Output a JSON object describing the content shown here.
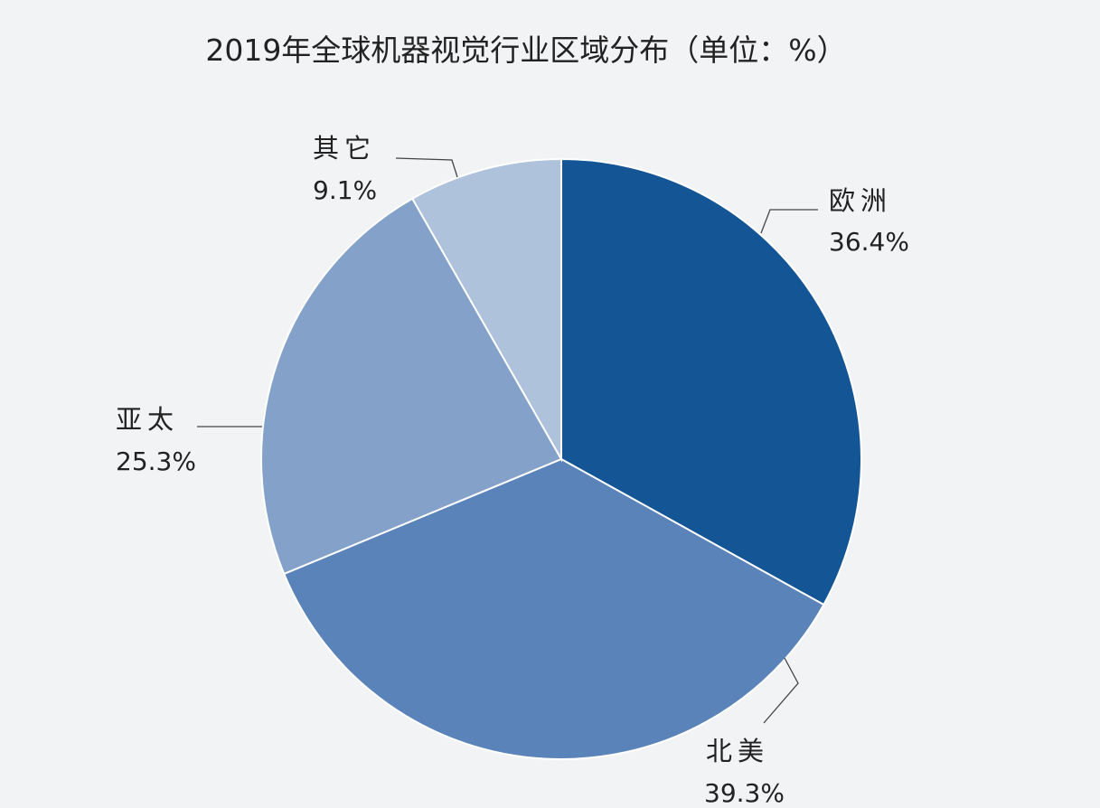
{
  "chart_data": {
    "type": "pie",
    "title": "2019年全球机器视觉行业区域分布（单位：%）",
    "slices": [
      {
        "label": "欧洲",
        "value": 36.4,
        "value_label": "36.4%",
        "color": "#145695"
      },
      {
        "label": "北美",
        "value": 39.3,
        "value_label": "39.3%",
        "color": "#5983b9"
      },
      {
        "label": "亚太",
        "value": 25.3,
        "value_label": "25.3%",
        "color": "#84a2c9"
      },
      {
        "label": "其它",
        "value": 9.1,
        "value_label": "9.1%",
        "color": "#afc2dc"
      }
    ],
    "legend": "none"
  }
}
